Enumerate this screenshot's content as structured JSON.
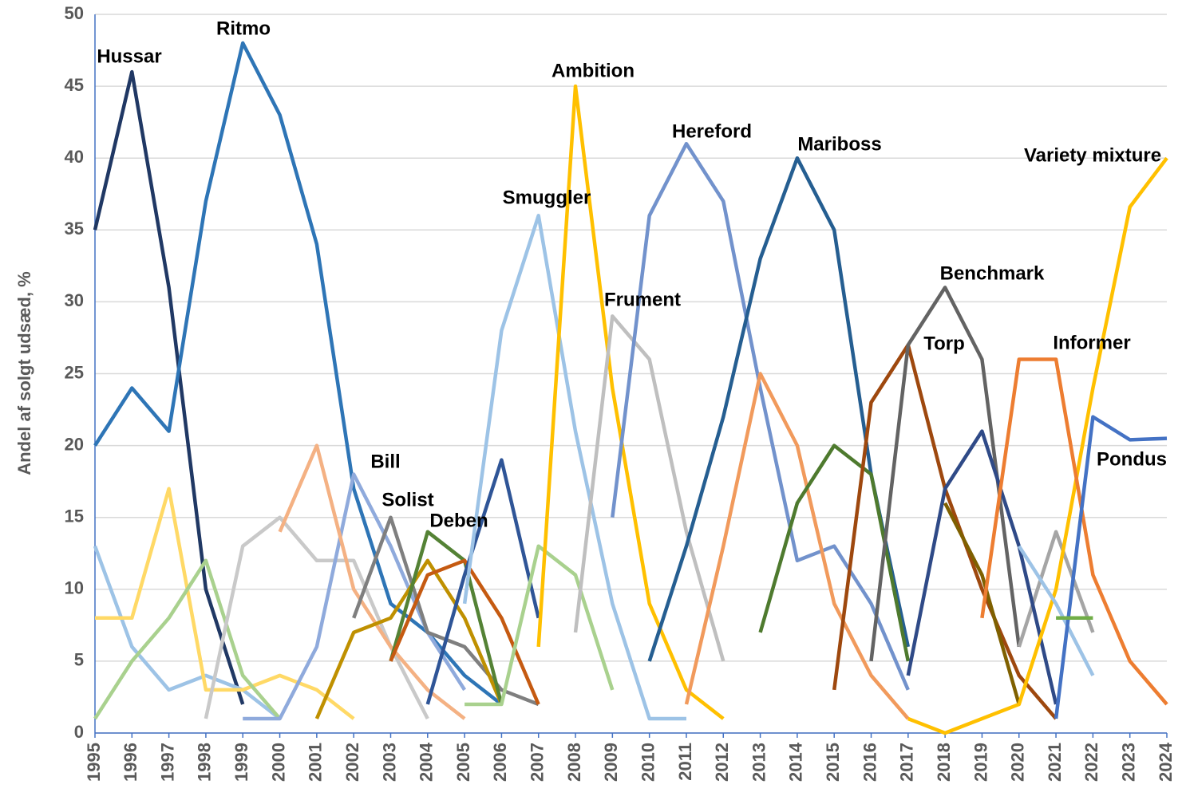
{
  "chart_data": {
    "type": "line",
    "ylabel": "Andel af solgt udsæd, %",
    "categories": [
      "1995",
      "1996",
      "1997",
      "1998",
      "1999",
      "2000",
      "2001",
      "2002",
      "2003",
      "2004",
      "2005",
      "2006",
      "2007",
      "2008",
      "2009",
      "2010",
      "2011",
      "2012",
      "2013",
      "2014",
      "2015",
      "2016",
      "2017",
      "2018",
      "2019",
      "2020",
      "2021",
      "2022",
      "2023",
      "2024"
    ],
    "ylim": [
      0,
      50
    ],
    "yticks": [
      0,
      5,
      10,
      15,
      20,
      25,
      30,
      35,
      40,
      45,
      50
    ],
    "grid": true,
    "series": [
      {
        "name": "Hussar",
        "color": "#203864",
        "values": [
          35,
          46,
          31,
          10,
          2,
          null,
          null,
          null,
          null,
          null,
          null,
          null,
          null,
          null,
          null,
          null,
          null,
          null,
          null,
          null,
          null,
          null,
          null,
          null,
          null,
          null,
          null,
          null,
          null,
          null
        ]
      },
      {
        "name": "Ritmo",
        "color": "#2e75b6",
        "values": [
          20,
          24,
          21,
          37,
          48,
          43,
          34,
          17,
          9,
          7,
          4,
          2,
          null,
          null,
          null,
          null,
          null,
          null,
          null,
          null,
          null,
          null,
          null,
          null,
          null,
          null,
          null,
          null,
          null,
          null
        ]
      },
      {
        "color": "#9dc3e6",
        "values": [
          13,
          6,
          3,
          4,
          3,
          1,
          null,
          null,
          null,
          null,
          null,
          null,
          null,
          null,
          null,
          null,
          null,
          null,
          null,
          null,
          null,
          null,
          null,
          null,
          null,
          null,
          null,
          null,
          null,
          null
        ]
      },
      {
        "color": "#ffd966",
        "values": [
          8,
          8,
          17,
          3,
          3,
          4,
          3,
          1,
          null,
          null,
          null,
          null,
          null,
          null,
          null,
          null,
          null,
          null,
          null,
          null,
          null,
          null,
          null,
          null,
          null,
          null,
          null,
          null,
          null,
          null
        ]
      },
      {
        "color": "#a9d18e",
        "values": [
          1,
          5,
          8,
          12,
          4,
          1,
          null,
          null,
          null,
          null,
          null,
          null,
          null,
          null,
          null,
          null,
          null,
          null,
          null,
          null,
          null,
          null,
          null,
          null,
          null,
          null,
          null,
          null,
          null,
          null
        ]
      },
      {
        "color": "#c9c9c9",
        "values": [
          null,
          null,
          null,
          1,
          13,
          15,
          12,
          12,
          6,
          1,
          null,
          null,
          null,
          null,
          null,
          null,
          null,
          null,
          null,
          null,
          null,
          null,
          null,
          null,
          null,
          null,
          null,
          null,
          null,
          null
        ]
      },
      {
        "name": "Bill",
        "color": "#8faadc",
        "values": [
          null,
          null,
          null,
          null,
          1,
          1,
          6,
          18,
          13,
          7,
          3,
          null,
          null,
          null,
          null,
          null,
          null,
          null,
          null,
          null,
          null,
          null,
          null,
          null,
          null,
          null,
          null,
          null,
          null,
          null
        ]
      },
      {
        "color": "#f4b183",
        "values": [
          null,
          null,
          null,
          null,
          null,
          14,
          20,
          10,
          6,
          3,
          1,
          null,
          null,
          null,
          null,
          null,
          null,
          null,
          null,
          null,
          null,
          null,
          null,
          null,
          null,
          null,
          null,
          null,
          null,
          null
        ]
      },
      {
        "name": "Solist",
        "color": "#7f7f7f",
        "values": [
          null,
          null,
          null,
          null,
          null,
          null,
          null,
          8,
          15,
          7,
          6,
          3,
          2,
          null,
          null,
          null,
          null,
          null,
          null,
          null,
          null,
          null,
          null,
          null,
          null,
          null,
          null,
          null,
          null,
          null
        ]
      },
      {
        "color": "#bf9000",
        "values": [
          null,
          null,
          null,
          null,
          null,
          null,
          1,
          7,
          8,
          12,
          8,
          2,
          null,
          null,
          null,
          null,
          null,
          null,
          null,
          null,
          null,
          null,
          null,
          null,
          null,
          null,
          null,
          null,
          null,
          null
        ]
      },
      {
        "name": "Deben",
        "color": "#548235",
        "values": [
          null,
          null,
          null,
          null,
          null,
          null,
          null,
          null,
          5,
          14,
          12,
          2,
          null,
          null,
          null,
          null,
          null,
          null,
          null,
          null,
          null,
          null,
          null,
          null,
          null,
          null,
          null,
          null,
          null,
          null
        ]
      },
      {
        "color": "#c55a11",
        "values": [
          null,
          null,
          null,
          null,
          null,
          null,
          null,
          null,
          5,
          11,
          12,
          8,
          2,
          null,
          null,
          null,
          null,
          null,
          null,
          null,
          null,
          null,
          null,
          null,
          null,
          null,
          null,
          null,
          null,
          null
        ]
      },
      {
        "color": "#2f5597",
        "values": [
          null,
          null,
          null,
          null,
          null,
          null,
          null,
          null,
          null,
          2,
          11,
          19,
          8,
          null,
          null,
          null,
          null,
          null,
          null,
          null,
          null,
          null,
          null,
          null,
          null,
          null,
          null,
          null,
          null,
          null
        ]
      },
      {
        "name": "Smuggler",
        "color": "#9dc3e6",
        "values": [
          null,
          null,
          null,
          null,
          null,
          null,
          null,
          null,
          null,
          null,
          9,
          28,
          36,
          21,
          9,
          1,
          1,
          null,
          null,
          null,
          null,
          null,
          null,
          null,
          null,
          null,
          null,
          null,
          null,
          null
        ]
      },
      {
        "color": "#a9d18e",
        "values": [
          null,
          null,
          null,
          null,
          null,
          null,
          null,
          null,
          null,
          null,
          2,
          2,
          13,
          11,
          3,
          null,
          null,
          null,
          null,
          null,
          null,
          null,
          null,
          null,
          null,
          null,
          null,
          null,
          null,
          null
        ]
      },
      {
        "name": "Ambition",
        "color": "#ffc000",
        "values": [
          null,
          null,
          null,
          null,
          null,
          null,
          null,
          null,
          null,
          null,
          null,
          null,
          6,
          45,
          24,
          9,
          3,
          1,
          null,
          null,
          null,
          null,
          null,
          null,
          null,
          null,
          null,
          null,
          null,
          null
        ]
      },
      {
        "name": "Frument",
        "color": "#bfbfbf",
        "values": [
          null,
          null,
          null,
          null,
          null,
          null,
          null,
          null,
          null,
          null,
          null,
          null,
          null,
          7,
          29,
          26,
          14,
          5,
          null,
          null,
          null,
          null,
          null,
          null,
          null,
          null,
          null,
          null,
          null,
          null
        ]
      },
      {
        "name": "Hereford",
        "color": "#7292cc",
        "values": [
          null,
          null,
          null,
          null,
          null,
          null,
          null,
          null,
          null,
          null,
          null,
          null,
          null,
          null,
          15,
          36,
          41,
          37,
          24,
          12,
          13,
          9,
          3,
          null,
          null,
          null,
          null,
          null,
          null,
          null
        ]
      },
      {
        "name": "Mariboss",
        "color": "#255e91",
        "values": [
          null,
          null,
          null,
          null,
          null,
          null,
          null,
          null,
          null,
          null,
          null,
          null,
          null,
          null,
          null,
          5,
          13,
          22,
          33,
          40,
          35,
          18,
          6,
          null,
          null,
          null,
          null,
          null,
          null,
          null
        ]
      },
      {
        "color": "#f19a5c",
        "values": [
          null,
          null,
          null,
          null,
          null,
          null,
          null,
          null,
          null,
          null,
          null,
          null,
          null,
          null,
          null,
          null,
          2,
          13,
          25,
          20,
          9,
          4,
          1,
          null,
          null,
          null,
          null,
          null,
          null,
          null
        ]
      },
      {
        "color": "#4e7a2e",
        "values": [
          null,
          null,
          null,
          null,
          null,
          null,
          null,
          null,
          null,
          null,
          null,
          null,
          null,
          null,
          null,
          null,
          null,
          null,
          7,
          16,
          20,
          18,
          5,
          null,
          null,
          null,
          null,
          null,
          null,
          null
        ]
      },
      {
        "name": "Torp",
        "color": "#9e480e",
        "values": [
          null,
          null,
          null,
          null,
          null,
          null,
          null,
          null,
          null,
          null,
          null,
          null,
          null,
          null,
          null,
          null,
          null,
          null,
          null,
          null,
          3,
          23,
          27,
          17,
          10,
          4,
          1,
          null,
          null,
          null
        ]
      },
      {
        "name": "Benchmark",
        "color": "#636363",
        "values": [
          null,
          null,
          null,
          null,
          null,
          null,
          null,
          null,
          null,
          null,
          null,
          null,
          null,
          null,
          null,
          null,
          null,
          null,
          null,
          null,
          null,
          5,
          27,
          31,
          26,
          6,
          null,
          null,
          null,
          null
        ]
      },
      {
        "color": "#a5a5a5",
        "values": [
          null,
          null,
          null,
          null,
          null,
          null,
          null,
          null,
          null,
          null,
          null,
          null,
          null,
          null,
          null,
          null,
          null,
          null,
          null,
          null,
          null,
          null,
          null,
          null,
          null,
          6,
          14,
          7,
          null,
          null
        ]
      },
      {
        "color": "#2f4a87",
        "values": [
          null,
          null,
          null,
          null,
          null,
          null,
          null,
          null,
          null,
          null,
          null,
          null,
          null,
          null,
          null,
          null,
          null,
          null,
          null,
          null,
          null,
          null,
          4,
          17,
          21,
          13,
          2,
          null,
          null,
          null
        ]
      },
      {
        "color": "#7f6000",
        "values": [
          null,
          null,
          null,
          null,
          null,
          null,
          null,
          null,
          null,
          null,
          null,
          null,
          null,
          null,
          null,
          null,
          null,
          null,
          null,
          null,
          null,
          null,
          null,
          16,
          11,
          2,
          null,
          null,
          null,
          null
        ]
      },
      {
        "name": "Variety mixture",
        "color": "#ffc000",
        "values": [
          null,
          null,
          null,
          null,
          null,
          null,
          null,
          null,
          null,
          null,
          null,
          null,
          null,
          null,
          null,
          null,
          null,
          null,
          null,
          null,
          null,
          null,
          1,
          0,
          1,
          2,
          10,
          24,
          36.6,
          40
        ]
      },
      {
        "name": "Informer",
        "color": "#ed7d31",
        "values": [
          null,
          null,
          null,
          null,
          null,
          null,
          null,
          null,
          null,
          null,
          null,
          null,
          null,
          null,
          null,
          null,
          null,
          null,
          null,
          null,
          null,
          null,
          null,
          null,
          8,
          26,
          26,
          11,
          5,
          2
        ]
      },
      {
        "color": "#9dc3e6",
        "values": [
          null,
          null,
          null,
          null,
          null,
          null,
          null,
          null,
          null,
          null,
          null,
          null,
          null,
          null,
          null,
          null,
          null,
          null,
          null,
          null,
          null,
          null,
          null,
          null,
          null,
          13,
          9,
          4,
          null,
          null
        ]
      },
      {
        "name": "Pondus",
        "color": "#4472c4",
        "values": [
          null,
          null,
          null,
          null,
          null,
          null,
          null,
          null,
          null,
          null,
          null,
          null,
          null,
          null,
          null,
          null,
          null,
          null,
          null,
          null,
          null,
          null,
          null,
          null,
          null,
          null,
          1,
          22,
          20.4,
          20.5
        ]
      },
      {
        "color": "#70ad47",
        "values": [
          null,
          null,
          null,
          null,
          null,
          null,
          null,
          null,
          null,
          null,
          null,
          null,
          null,
          null,
          null,
          null,
          null,
          null,
          null,
          null,
          null,
          null,
          null,
          null,
          null,
          null,
          8,
          8,
          null,
          null
        ]
      }
    ]
  }
}
